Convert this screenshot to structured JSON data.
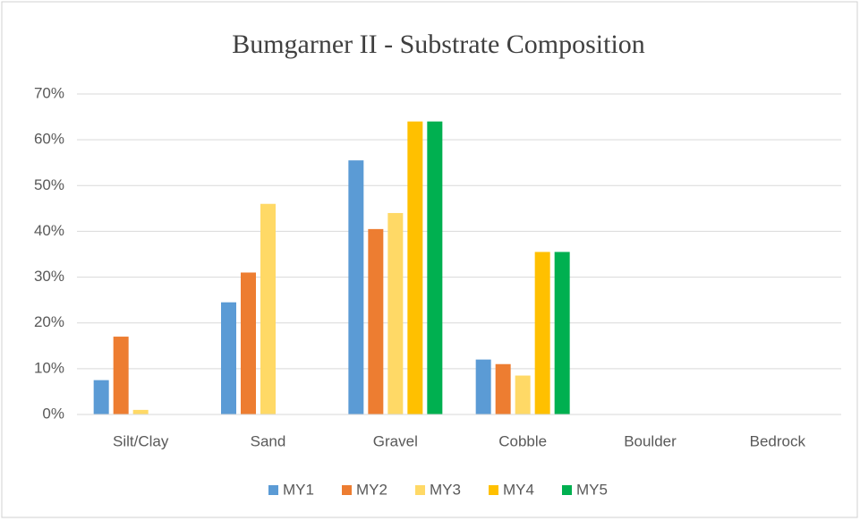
{
  "chart_data": {
    "type": "bar",
    "title": "Bumgarner II - Substrate Composition",
    "categories": [
      "Silt/Clay",
      "Sand",
      "Gravel",
      "Cobble",
      "Boulder",
      "Bedrock"
    ],
    "series": [
      {
        "name": "MY1",
        "color": "#5b9bd5",
        "values": [
          7.5,
          24.5,
          55.5,
          12,
          0,
          0
        ]
      },
      {
        "name": "MY2",
        "color": "#ed7d31",
        "values": [
          17,
          31,
          40.5,
          11,
          0,
          0
        ]
      },
      {
        "name": "MY3",
        "color": "#ffd966",
        "values": [
          1,
          46,
          44,
          8.5,
          0,
          0
        ]
      },
      {
        "name": "MY4",
        "color": "#ffc000",
        "values": [
          0,
          0,
          64,
          35.5,
          0,
          0
        ]
      },
      {
        "name": "MY5",
        "color": "#00b050",
        "values": [
          0,
          0,
          64,
          35.5,
          0,
          0
        ]
      }
    ],
    "ylim": [
      0,
      70
    ],
    "yticks": [
      {
        "value": 0,
        "label": "0%"
      },
      {
        "value": 10,
        "label": "10%"
      },
      {
        "value": 20,
        "label": "20%"
      },
      {
        "value": 30,
        "label": "30%"
      },
      {
        "value": 40,
        "label": "40%"
      },
      {
        "value": 50,
        "label": "50%"
      },
      {
        "value": 60,
        "label": "60%"
      },
      {
        "value": 70,
        "label": "70%"
      }
    ],
    "grid": true,
    "legend": "bottom"
  }
}
